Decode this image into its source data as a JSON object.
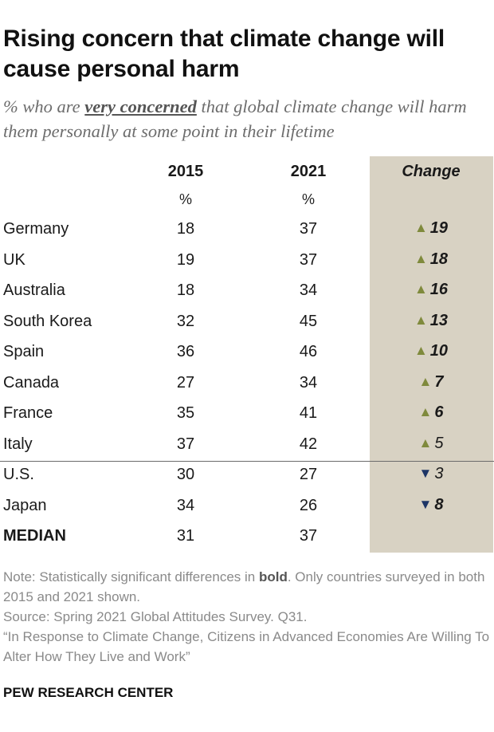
{
  "header": {
    "title": "Rising concern that climate change will cause personal harm",
    "subtitle_pre": "% who are ",
    "subtitle_em": "very concerned",
    "subtitle_post": " that global climate change will harm them personally at some point in their lifetime"
  },
  "columns": {
    "y2015": "2015",
    "y2021": "2021",
    "change": "Change",
    "unit": "%"
  },
  "colors": {
    "increase": "#7f8a3c",
    "decrease": "#1d3566",
    "change_bg": "#d8d2c3"
  },
  "chart_data": {
    "type": "table",
    "columns": [
      "2015",
      "2021",
      "Change"
    ],
    "rows": [
      {
        "country": "Germany",
        "y2015": "18",
        "y2021": "37",
        "change": "19",
        "direction": "up",
        "bold": true
      },
      {
        "country": "UK",
        "y2015": "19",
        "y2021": "37",
        "change": "18",
        "direction": "up",
        "bold": true
      },
      {
        "country": "Australia",
        "y2015": "18",
        "y2021": "34",
        "change": "16",
        "direction": "up",
        "bold": true
      },
      {
        "country": "South Korea",
        "y2015": "32",
        "y2021": "45",
        "change": "13",
        "direction": "up",
        "bold": true
      },
      {
        "country": "Spain",
        "y2015": "36",
        "y2021": "46",
        "change": "10",
        "direction": "up",
        "bold": true
      },
      {
        "country": "Canada",
        "y2015": "27",
        "y2021": "34",
        "change": "7",
        "direction": "up",
        "bold": true
      },
      {
        "country": "France",
        "y2015": "35",
        "y2021": "41",
        "change": "6",
        "direction": "up",
        "bold": true
      },
      {
        "country": "Italy",
        "y2015": "37",
        "y2021": "42",
        "change": "5",
        "direction": "up",
        "bold": false
      },
      {
        "country": "U.S.",
        "y2015": "30",
        "y2021": "27",
        "change": "3",
        "direction": "down",
        "bold": false
      },
      {
        "country": "Japan",
        "y2015": "34",
        "y2021": "26",
        "change": "8",
        "direction": "down",
        "bold": true
      }
    ],
    "median": {
      "country": "MEDIAN",
      "y2015": "31",
      "y2021": "37"
    }
  },
  "notes": {
    "note_pre": "Note: Statistically significant differences in ",
    "note_bold": "bold",
    "note_post": ". Only countries surveyed in both 2015 and 2021 shown.",
    "source": "Source: Spring 2021 Global Attitudes Survey. Q31.",
    "report": "“In Response to Climate Change, Citizens in Advanced Economies Are Willing To Alter How They Live and Work”"
  },
  "footer": {
    "org": "PEW RESEARCH CENTER"
  }
}
